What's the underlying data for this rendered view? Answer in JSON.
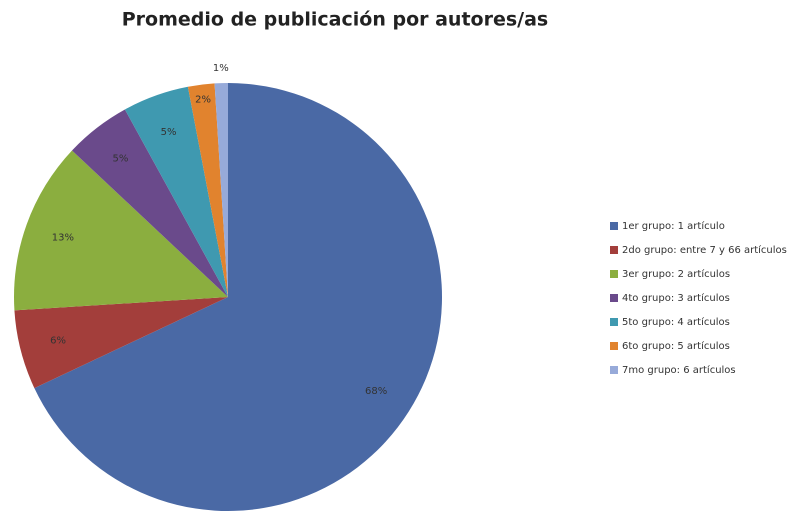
{
  "chart_data": {
    "type": "pie",
    "title": "Promedio de publicación por autores/as",
    "categories": [
      "1er grupo: 1 artículo",
      "2do grupo: entre 7 y 66 artículos",
      "3er grupo: 2 artículos",
      "4to grupo: 3 artículos",
      "5to grupo: 4 artículos",
      "6to grupo: 5 artículos",
      "7mo grupo: 6 artículos"
    ],
    "values": [
      68,
      6,
      13,
      5,
      5,
      2,
      1
    ],
    "value_labels": [
      "68%",
      "6%",
      "13%",
      "5%",
      "5%",
      "2%",
      "1%"
    ],
    "colors": [
      "#4a69a5",
      "#a33e3b",
      "#8bae3f",
      "#6a4a8b",
      "#3f99b0",
      "#e1832e",
      "#97aad9"
    ],
    "legend": "right"
  }
}
